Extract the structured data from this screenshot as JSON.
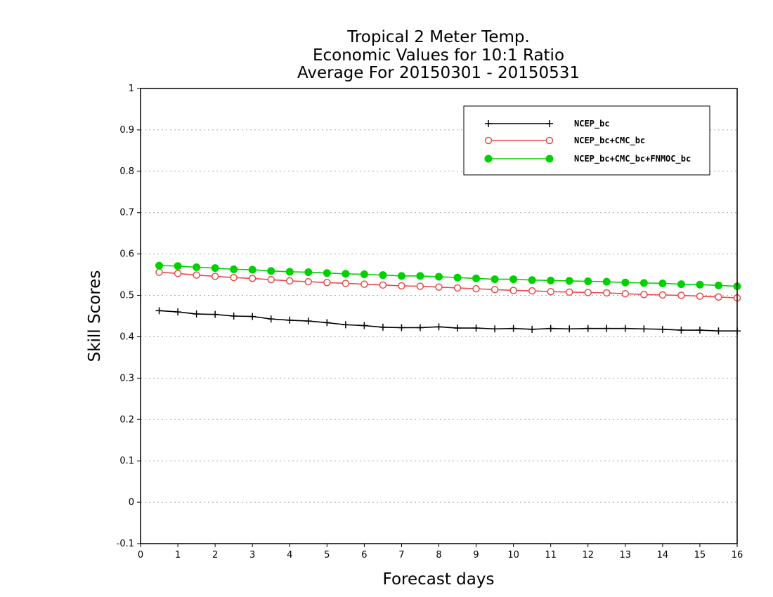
{
  "chart_data": {
    "type": "line",
    "title": [
      "Tropical 2 Meter Temp.",
      "Economic Values for 10:1 Ratio",
      "Average For 20150301 - 20150531"
    ],
    "xlabel": "Forecast days",
    "ylabel": "Skill Scores",
    "xlim": [
      0,
      16
    ],
    "ylim": [
      -0.1,
      1
    ],
    "xticks": [
      0,
      1,
      2,
      3,
      4,
      5,
      6,
      7,
      8,
      9,
      10,
      11,
      12,
      13,
      14,
      15,
      16
    ],
    "yticks": [
      -0.1,
      0,
      0.1,
      0.2,
      0.3,
      0.4,
      0.5,
      0.6,
      0.7,
      0.8,
      0.9,
      1
    ],
    "ytick_labels": [
      "-0.1",
      "0",
      "0.1",
      "0.2",
      "0.3",
      "0.4",
      "0.5",
      "0.6",
      "0.7",
      "0.8",
      "0.9",
      "1"
    ],
    "grid": "horizontal dotted",
    "legend_position": "top-right",
    "x": [
      0.5,
      1.0,
      1.5,
      2.0,
      2.5,
      3.0,
      3.5,
      4.0,
      4.5,
      5.0,
      5.5,
      6.0,
      6.5,
      7.0,
      7.5,
      8.0,
      8.5,
      9.0,
      9.5,
      10.0,
      10.5,
      11.0,
      11.5,
      12.0,
      12.5,
      13.0,
      13.5,
      14.0,
      14.5,
      15.0,
      15.5,
      16.0
    ],
    "series": [
      {
        "name": "NCEP_bc",
        "color": "#000000",
        "marker": "plus",
        "values": [
          0.463,
          0.46,
          0.455,
          0.454,
          0.45,
          0.449,
          0.443,
          0.44,
          0.438,
          0.434,
          0.429,
          0.427,
          0.423,
          0.422,
          0.422,
          0.424,
          0.421,
          0.421,
          0.419,
          0.42,
          0.418,
          0.42,
          0.419,
          0.42,
          0.42,
          0.42,
          0.419,
          0.418,
          0.416,
          0.416,
          0.414,
          0.414
        ]
      },
      {
        "name": "NCEP_bc+CMC_bc",
        "color": "#e84a4a",
        "marker": "open-circle",
        "values": [
          0.556,
          0.553,
          0.549,
          0.546,
          0.543,
          0.541,
          0.538,
          0.535,
          0.533,
          0.531,
          0.529,
          0.527,
          0.525,
          0.523,
          0.522,
          0.52,
          0.518,
          0.516,
          0.514,
          0.512,
          0.511,
          0.509,
          0.508,
          0.507,
          0.506,
          0.504,
          0.502,
          0.501,
          0.5,
          0.498,
          0.496,
          0.494
        ]
      },
      {
        "name": "NCEP_bc+CMC_bc+FNMOC_bc",
        "color": "#00d200",
        "marker": "filled-circle",
        "values": [
          0.572,
          0.571,
          0.568,
          0.566,
          0.563,
          0.562,
          0.559,
          0.557,
          0.556,
          0.554,
          0.552,
          0.551,
          0.549,
          0.547,
          0.547,
          0.545,
          0.543,
          0.541,
          0.539,
          0.539,
          0.537,
          0.536,
          0.535,
          0.534,
          0.533,
          0.531,
          0.53,
          0.529,
          0.527,
          0.526,
          0.524,
          0.522
        ]
      }
    ]
  }
}
